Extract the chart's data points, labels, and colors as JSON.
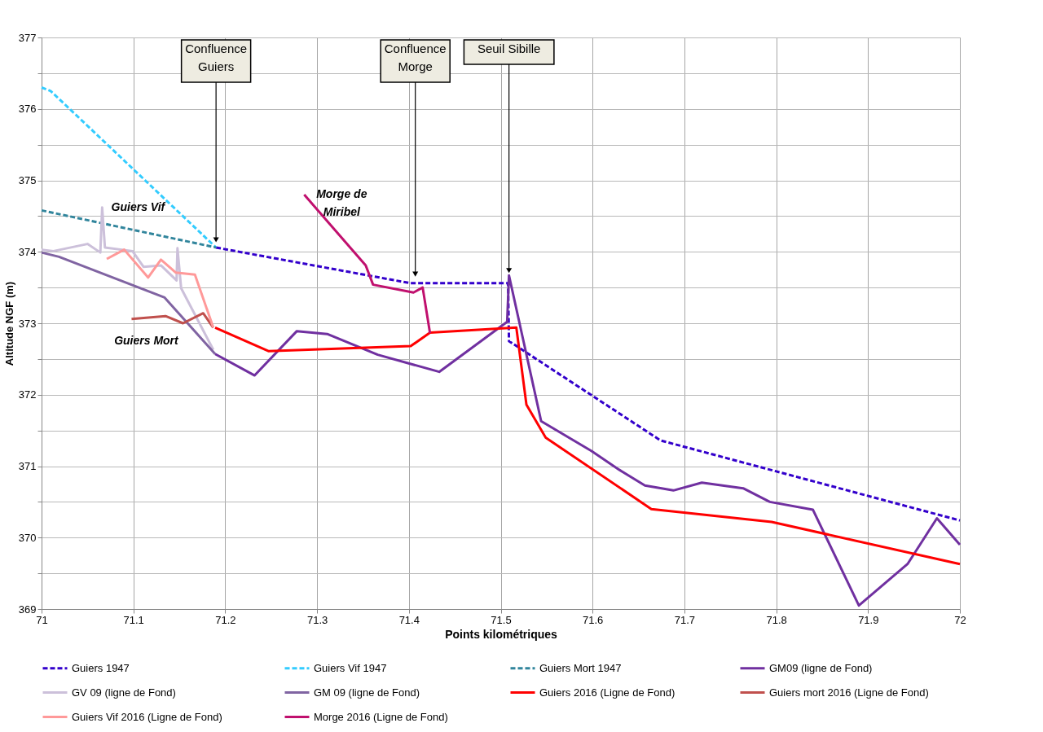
{
  "chart_data": {
    "type": "line",
    "xlabel": "Points kilométriques",
    "ylabel": "Altitude NGF (m)",
    "xlim": [
      71,
      72
    ],
    "xticks": [
      71,
      71.1,
      71.2,
      71.3,
      71.4,
      71.5,
      71.6,
      71.7,
      71.8,
      71.9,
      72
    ],
    "ylim": [
      369,
      377
    ],
    "yticks": [
      369,
      {
        "value": 369.5,
        "label": null
      },
      370,
      {
        "value": 370.5,
        "label": null
      },
      371,
      {
        "value": 371.5,
        "label": null
      },
      372,
      {
        "value": 372.5,
        "label": null
      },
      373,
      {
        "value": 373.5,
        "label": null
      },
      374,
      {
        "value": 374.5,
        "label": null
      },
      375,
      {
        "value": 375.5,
        "label": null
      },
      376,
      {
        "value": 376.5,
        "label": null
      },
      377
    ],
    "grid": true,
    "legend": "bottom",
    "marker": "none",
    "series": [
      {
        "name": "Guiers 1947",
        "color": "#3300cc",
        "line_style": "dashed",
        "x": [
          71.19,
          71.402,
          71.508,
          71.509,
          71.674,
          72
        ],
        "values": [
          374.06,
          373.56,
          373.56,
          372.75,
          371.36,
          370.24
        ]
      },
      {
        "name": "Guiers Vif 1947",
        "color": "#33ccff",
        "line_style": "dashed",
        "x": [
          71,
          71.01,
          71.19
        ],
        "values": [
          376.3,
          376.25,
          374.06
        ]
      },
      {
        "name": "Guiers Mort 1947",
        "color": "#31859c",
        "line_style": "dashed",
        "x": [
          71,
          71.19
        ],
        "values": [
          374.58,
          374.06
        ]
      },
      {
        "name": "GM09 (ligne de Fond)",
        "color": "#7030a0",
        "line_style": "solid",
        "x": [
          71.189,
          71.232,
          71.278,
          71.311,
          71.366,
          71.433,
          71.507,
          71.509,
          71.544,
          71.599,
          71.629,
          71.657,
          71.688,
          71.719,
          71.764,
          71.793,
          71.84,
          71.89,
          71.943,
          71.975,
          72
        ],
        "values": [
          372.57,
          372.27,
          372.89,
          372.85,
          372.56,
          372.32,
          373.02,
          373.67,
          371.63,
          371.21,
          370.95,
          370.73,
          370.66,
          370.77,
          370.69,
          370.5,
          370.39,
          369.05,
          369.63,
          370.27,
          369.9
        ]
      },
      {
        "name": "GV 09 (ligne de Fond)",
        "color": "#ccc0da",
        "line_style": "solid",
        "x": [
          71,
          71.013,
          71.05,
          71.064,
          71.066,
          71.069,
          71.099,
          71.111,
          71.13,
          71.147,
          71.148,
          71.152,
          71.187
        ],
        "values": [
          374.03,
          374.01,
          374.11,
          373.99,
          374.62,
          374.06,
          374.01,
          373.79,
          373.81,
          373.6,
          374.05,
          373.49,
          372.63
        ]
      },
      {
        "name": "GM 09 (ligne de Fond)",
        "color": "#8064a2",
        "line_style": "solid",
        "x": [
          71,
          71.019,
          71.134,
          71.189
        ],
        "values": [
          373.99,
          373.93,
          373.36,
          372.57
        ]
      },
      {
        "name": "Guiers  2016 (Ligne de Fond)",
        "color": "#ff0000",
        "line_style": "solid",
        "x": [
          71.189,
          71.247,
          71.402,
          71.423,
          71.517,
          71.528,
          71.549,
          71.664,
          71.795,
          72
        ],
        "values": [
          372.94,
          372.61,
          372.68,
          372.87,
          372.94,
          371.86,
          371.4,
          370.4,
          370.22,
          369.63
        ]
      },
      {
        "name": "Guiers mort 2016 (Ligne de Fond)",
        "color": "#c0504d",
        "line_style": "solid",
        "x": [
          71.098,
          71.135,
          71.154,
          71.176,
          71.187
        ],
        "values": [
          373.06,
          373.1,
          373.0,
          373.14,
          372.94
        ]
      },
      {
        "name": "Guiers Vif 2016 (Ligne de Fond)",
        "color": "#ff9999",
        "line_style": "solid",
        "x": [
          71.071,
          71.09,
          71.116,
          71.13,
          71.146,
          71.167,
          71.187
        ],
        "values": [
          373.9,
          374.03,
          373.64,
          373.89,
          373.71,
          373.68,
          372.94
        ]
      },
      {
        "name": "Morge 2016 (Ligne de Fond)",
        "color": "#c0106e",
        "line_style": "solid",
        "x": [
          71.286,
          71.353,
          71.361,
          71.405,
          71.415,
          71.423
        ],
        "values": [
          374.8,
          373.81,
          373.54,
          373.43,
          373.5,
          372.86
        ]
      }
    ],
    "annotations": [
      {
        "text": "Confluence\nGuiers",
        "x": 71.19,
        "y": 374.1
      },
      {
        "text": "Confluence\nMorge",
        "x": 71.407,
        "y": 373.62
      },
      {
        "text": "Seuil Sibille",
        "x": 71.509,
        "y": 373.67
      },
      {
        "text": "Guiers Vif",
        "x": 71.066,
        "y": 374.62
      },
      {
        "text": "Morge de\nMiribel",
        "x": 71.286,
        "y": 374.8
      },
      {
        "text": "Guiers Mort",
        "x": 71.098,
        "y": 373.06
      }
    ]
  }
}
